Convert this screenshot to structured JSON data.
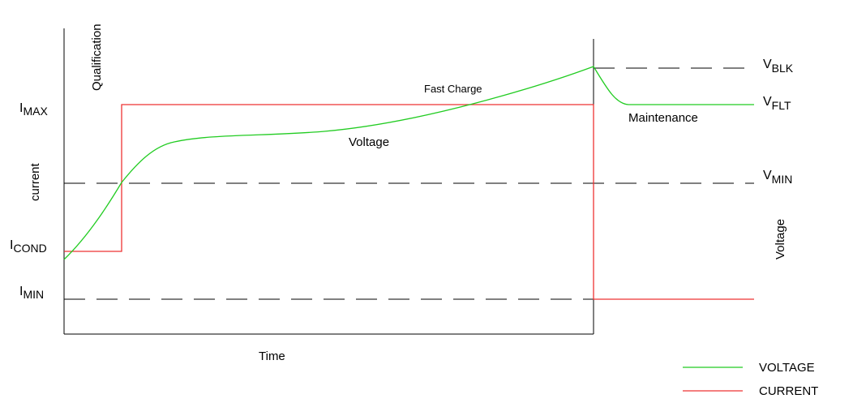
{
  "colors": {
    "voltage": "#22cc22",
    "current": "#ee3333",
    "axis": "#000000",
    "dashed": "#000000"
  },
  "labels": {
    "qualification": "Qualification",
    "fast_charge": "Fast Charge",
    "voltage_curve": "Voltage",
    "maintenance": "Maintenance",
    "left_axis": "current",
    "right_axis": "Voltage",
    "x_axis": "Time"
  },
  "levels": {
    "i_max": {
      "main": "I",
      "sub": "MAX"
    },
    "i_cond": {
      "main": "I",
      "sub": "COND"
    },
    "i_min": {
      "main": "I",
      "sub": "MIN"
    },
    "v_blk": {
      "main": "V",
      "sub": "BLK"
    },
    "v_flt": {
      "main": "V",
      "sub": "FLT"
    },
    "v_min": {
      "main": "V",
      "sub": "MIN"
    }
  },
  "legend": [
    {
      "label": "VOLTAGE",
      "color": "#22cc22"
    },
    {
      "label": "CURRENT",
      "color": "#ee3333"
    }
  ]
}
